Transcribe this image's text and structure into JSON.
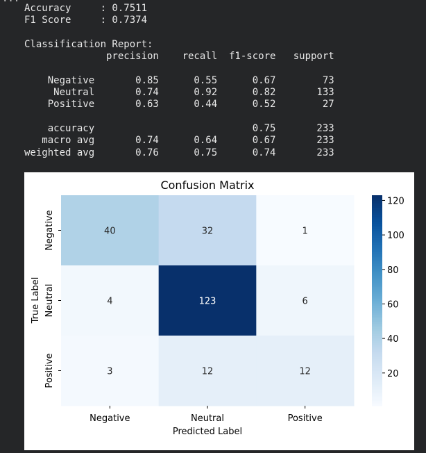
{
  "output": {
    "accuracy_label": "Accuracy",
    "accuracy_value": "0.7511",
    "f1_label": "F1 Score",
    "f1_value": "0.7374",
    "report_title": "Classification Report:",
    "report_headers": [
      "precision",
      "recall",
      "f1-score",
      "support"
    ],
    "report_rows": [
      [
        "Negative",
        "0.85",
        "0.55",
        "0.67",
        "73"
      ],
      [
        "Neutral",
        "0.74",
        "0.92",
        "0.82",
        "133"
      ],
      [
        "Positive",
        "0.63",
        "0.44",
        "0.52",
        "27"
      ]
    ],
    "summary_rows": [
      [
        "accuracy",
        "",
        "",
        "0.75",
        "233"
      ],
      [
        "macro avg",
        "0.74",
        "0.64",
        "0.67",
        "233"
      ],
      [
        "weighted avg",
        "0.76",
        "0.75",
        "0.74",
        "233"
      ]
    ]
  },
  "chart_data": {
    "type": "heatmap",
    "title": "Confusion Matrix",
    "xlabel": "Predicted Label",
    "ylabel": "True Label",
    "x_categories": [
      "Negative",
      "Neutral",
      "Positive"
    ],
    "y_categories": [
      "Negative",
      "Neutral",
      "Positive"
    ],
    "values": [
      [
        40,
        32,
        1
      ],
      [
        4,
        123,
        6
      ],
      [
        3,
        12,
        12
      ]
    ],
    "colormap": "Blues",
    "colorbar": {
      "range": [
        1,
        123
      ],
      "ticks": [
        20,
        40,
        60,
        80,
        100,
        120
      ]
    }
  }
}
